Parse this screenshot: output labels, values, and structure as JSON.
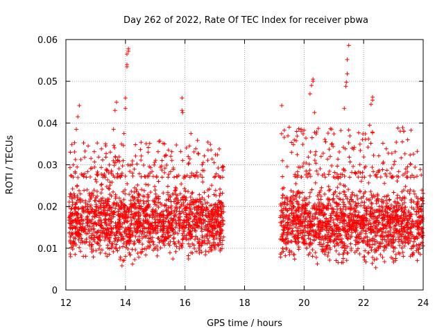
{
  "chart_data": {
    "type": "scatter",
    "title": "Day 262 of 2022, Rate Of TEC Index for receiver pbwa",
    "xlabel": "GPS time / hours",
    "ylabel": "ROTI / TECUs",
    "xlim": [
      12,
      24
    ],
    "ylim": [
      0,
      0.06
    ],
    "xticks": [
      "12",
      "14",
      "16",
      "18",
      "20",
      "22",
      "24"
    ],
    "yticks": [
      "0",
      "0.01",
      "0.02",
      "0.03",
      "0.04",
      "0.05",
      "0.06"
    ],
    "grid": true,
    "marker": "+",
    "color": "#ff0000",
    "series": [
      {
        "name": "ROTI",
        "segments": [
          {
            "x_start": 12.1,
            "x_end": 17.3,
            "typical_range": [
              0.005,
              0.027
            ],
            "max_cluster": [
              0.027,
              0.036
            ]
          },
          {
            "x_start": 19.2,
            "x_end": 24.0,
            "typical_range": [
              0.004,
              0.027
            ],
            "max_cluster": [
              0.027,
              0.039
            ]
          }
        ],
        "spikes": [
          {
            "x": 12.15,
            "y": 0.033
          },
          {
            "x": 12.35,
            "y": 0.0385
          },
          {
            "x": 12.4,
            "y": 0.0415
          },
          {
            "x": 12.45,
            "y": 0.0442
          },
          {
            "x": 13.6,
            "y": 0.0385
          },
          {
            "x": 13.65,
            "y": 0.043
          },
          {
            "x": 13.7,
            "y": 0.045
          },
          {
            "x": 13.95,
            "y": 0.0375
          },
          {
            "x": 14.0,
            "y": 0.0435
          },
          {
            "x": 14.0,
            "y": 0.046
          },
          {
            "x": 14.05,
            "y": 0.0535
          },
          {
            "x": 14.05,
            "y": 0.054
          },
          {
            "x": 14.05,
            "y": 0.0565
          },
          {
            "x": 14.1,
            "y": 0.0572
          },
          {
            "x": 14.1,
            "y": 0.0578
          },
          {
            "x": 15.9,
            "y": 0.046
          },
          {
            "x": 15.9,
            "y": 0.043
          },
          {
            "x": 15.92,
            "y": 0.0425
          },
          {
            "x": 16.15,
            "y": 0.0345
          },
          {
            "x": 16.2,
            "y": 0.0375
          },
          {
            "x": 19.25,
            "y": 0.0442
          },
          {
            "x": 19.5,
            "y": 0.039
          },
          {
            "x": 19.9,
            "y": 0.0385
          },
          {
            "x": 20.2,
            "y": 0.047
          },
          {
            "x": 20.25,
            "y": 0.049
          },
          {
            "x": 20.3,
            "y": 0.05
          },
          {
            "x": 20.3,
            "y": 0.0505
          },
          {
            "x": 20.35,
            "y": 0.0425
          },
          {
            "x": 21.35,
            "y": 0.0435
          },
          {
            "x": 21.4,
            "y": 0.0488
          },
          {
            "x": 21.42,
            "y": 0.0498
          },
          {
            "x": 21.45,
            "y": 0.0518
          },
          {
            "x": 21.45,
            "y": 0.0552
          },
          {
            "x": 21.5,
            "y": 0.0586
          },
          {
            "x": 22.2,
            "y": 0.0395
          },
          {
            "x": 22.25,
            "y": 0.0445
          },
          {
            "x": 22.3,
            "y": 0.0462
          },
          {
            "x": 22.3,
            "y": 0.0455
          },
          {
            "x": 23.3,
            "y": 0.0355
          },
          {
            "x": 23.35,
            "y": 0.038
          },
          {
            "x": 23.8,
            "y": 0.0332
          }
        ]
      }
    ]
  }
}
